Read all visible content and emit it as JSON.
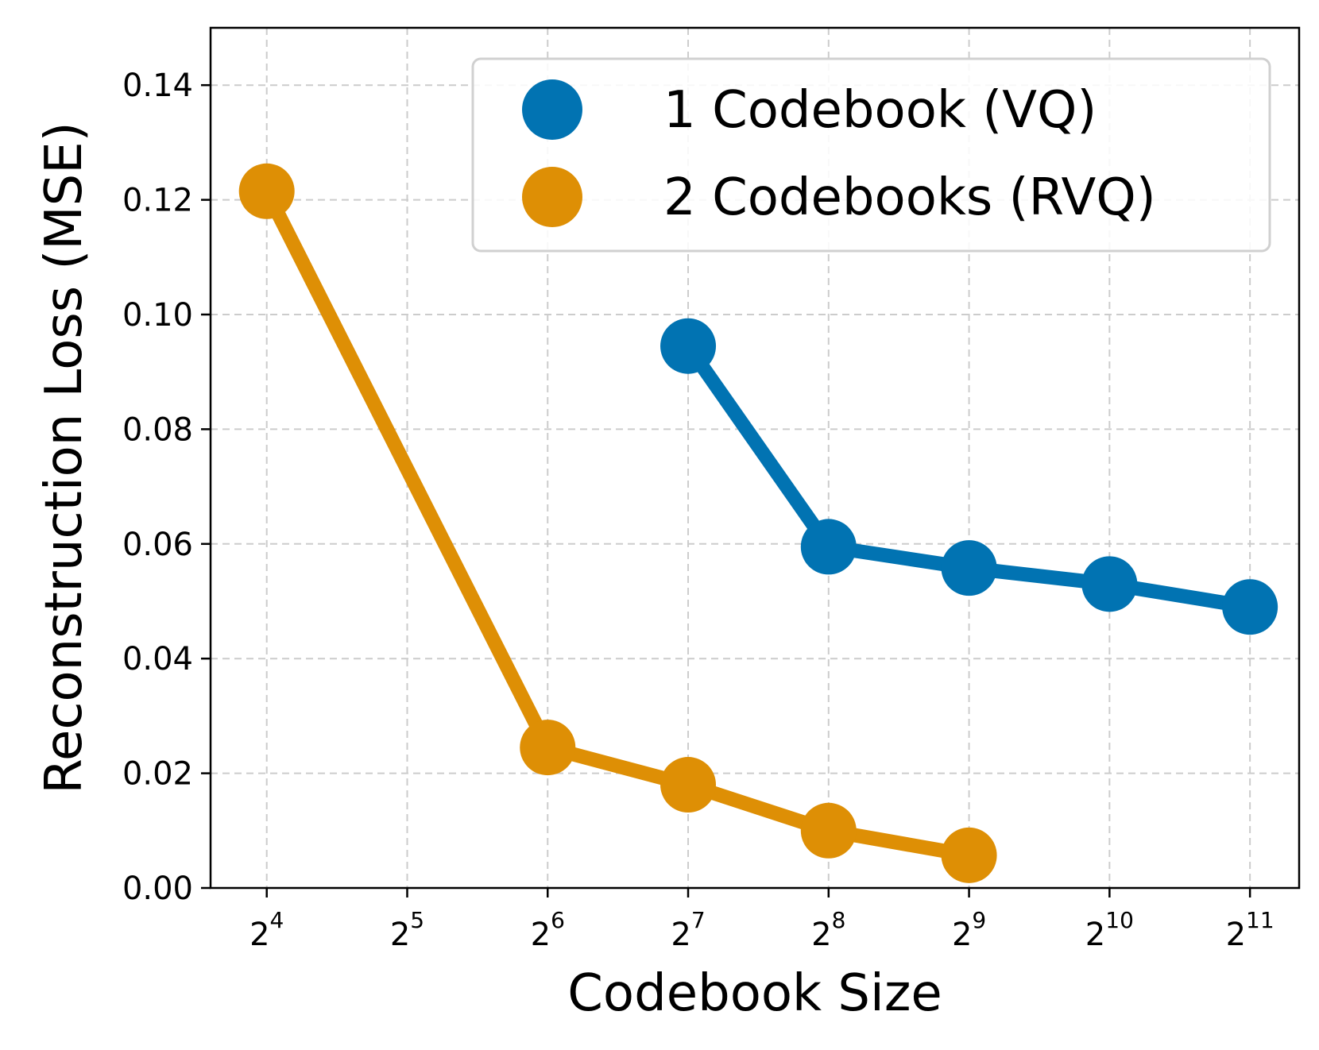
{
  "chart_data": {
    "type": "line",
    "title": "",
    "xlabel": "Codebook Size",
    "ylabel": "Reconstruction Loss (MSE)",
    "x_scale": "log2",
    "x_ticks": [
      {
        "exp": 4,
        "base": "2",
        "sup": "4"
      },
      {
        "exp": 5,
        "base": "2",
        "sup": "5"
      },
      {
        "exp": 6,
        "base": "2",
        "sup": "6"
      },
      {
        "exp": 7,
        "base": "2",
        "sup": "7"
      },
      {
        "exp": 8,
        "base": "2",
        "sup": "8"
      },
      {
        "exp": 9,
        "base": "2",
        "sup": "9"
      },
      {
        "exp": 10,
        "base": "2",
        "sup": "10"
      },
      {
        "exp": 11,
        "base": "2",
        "sup": "11"
      }
    ],
    "xlim_exp": [
      3.6,
      11.35
    ],
    "y_ticks": [
      "0.00",
      "0.02",
      "0.04",
      "0.06",
      "0.08",
      "0.10",
      "0.12",
      "0.14"
    ],
    "ylim": [
      0,
      0.15
    ],
    "grid": true,
    "legend_position": "top-right",
    "series": [
      {
        "name": "1 Codebook (VQ)",
        "color": "#0173b2",
        "x_exp": [
          7,
          8,
          9,
          10,
          11
        ],
        "values": [
          0.0945,
          0.0595,
          0.0558,
          0.053,
          0.049
        ]
      },
      {
        "name": "2 Codebooks (RVQ)",
        "color": "#de8f05",
        "x_exp": [
          4,
          6,
          7,
          8,
          9
        ],
        "values": [
          0.1215,
          0.0245,
          0.018,
          0.01,
          0.0057
        ]
      }
    ]
  }
}
